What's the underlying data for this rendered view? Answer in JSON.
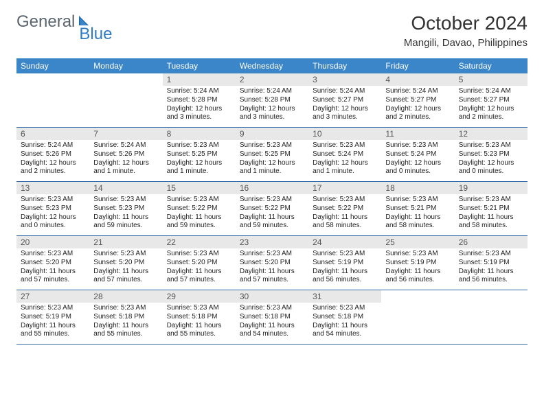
{
  "brand": {
    "general": "General",
    "blue": "Blue"
  },
  "title": "October 2024",
  "location": "Mangili, Davao, Philippines",
  "colors": {
    "header_bg": "#3a86c8",
    "daynum_bg": "#e8e8e8",
    "week_border": "#2f68a5",
    "logo_gray": "#5a6570",
    "logo_blue": "#2f7bc5"
  },
  "weekdays": [
    "Sunday",
    "Monday",
    "Tuesday",
    "Wednesday",
    "Thursday",
    "Friday",
    "Saturday"
  ],
  "weeks": [
    [
      {
        "n": "",
        "sunrise": "",
        "sunset": "",
        "daylight": ""
      },
      {
        "n": "",
        "sunrise": "",
        "sunset": "",
        "daylight": ""
      },
      {
        "n": "1",
        "sunrise": "Sunrise: 5:24 AM",
        "sunset": "Sunset: 5:28 PM",
        "daylight": "Daylight: 12 hours and 3 minutes."
      },
      {
        "n": "2",
        "sunrise": "Sunrise: 5:24 AM",
        "sunset": "Sunset: 5:28 PM",
        "daylight": "Daylight: 12 hours and 3 minutes."
      },
      {
        "n": "3",
        "sunrise": "Sunrise: 5:24 AM",
        "sunset": "Sunset: 5:27 PM",
        "daylight": "Daylight: 12 hours and 3 minutes."
      },
      {
        "n": "4",
        "sunrise": "Sunrise: 5:24 AM",
        "sunset": "Sunset: 5:27 PM",
        "daylight": "Daylight: 12 hours and 2 minutes."
      },
      {
        "n": "5",
        "sunrise": "Sunrise: 5:24 AM",
        "sunset": "Sunset: 5:27 PM",
        "daylight": "Daylight: 12 hours and 2 minutes."
      }
    ],
    [
      {
        "n": "6",
        "sunrise": "Sunrise: 5:24 AM",
        "sunset": "Sunset: 5:26 PM",
        "daylight": "Daylight: 12 hours and 2 minutes."
      },
      {
        "n": "7",
        "sunrise": "Sunrise: 5:24 AM",
        "sunset": "Sunset: 5:26 PM",
        "daylight": "Daylight: 12 hours and 1 minute."
      },
      {
        "n": "8",
        "sunrise": "Sunrise: 5:23 AM",
        "sunset": "Sunset: 5:25 PM",
        "daylight": "Daylight: 12 hours and 1 minute."
      },
      {
        "n": "9",
        "sunrise": "Sunrise: 5:23 AM",
        "sunset": "Sunset: 5:25 PM",
        "daylight": "Daylight: 12 hours and 1 minute."
      },
      {
        "n": "10",
        "sunrise": "Sunrise: 5:23 AM",
        "sunset": "Sunset: 5:24 PM",
        "daylight": "Daylight: 12 hours and 1 minute."
      },
      {
        "n": "11",
        "sunrise": "Sunrise: 5:23 AM",
        "sunset": "Sunset: 5:24 PM",
        "daylight": "Daylight: 12 hours and 0 minutes."
      },
      {
        "n": "12",
        "sunrise": "Sunrise: 5:23 AM",
        "sunset": "Sunset: 5:23 PM",
        "daylight": "Daylight: 12 hours and 0 minutes."
      }
    ],
    [
      {
        "n": "13",
        "sunrise": "Sunrise: 5:23 AM",
        "sunset": "Sunset: 5:23 PM",
        "daylight": "Daylight: 12 hours and 0 minutes."
      },
      {
        "n": "14",
        "sunrise": "Sunrise: 5:23 AM",
        "sunset": "Sunset: 5:23 PM",
        "daylight": "Daylight: 11 hours and 59 minutes."
      },
      {
        "n": "15",
        "sunrise": "Sunrise: 5:23 AM",
        "sunset": "Sunset: 5:22 PM",
        "daylight": "Daylight: 11 hours and 59 minutes."
      },
      {
        "n": "16",
        "sunrise": "Sunrise: 5:23 AM",
        "sunset": "Sunset: 5:22 PM",
        "daylight": "Daylight: 11 hours and 59 minutes."
      },
      {
        "n": "17",
        "sunrise": "Sunrise: 5:23 AM",
        "sunset": "Sunset: 5:22 PM",
        "daylight": "Daylight: 11 hours and 58 minutes."
      },
      {
        "n": "18",
        "sunrise": "Sunrise: 5:23 AM",
        "sunset": "Sunset: 5:21 PM",
        "daylight": "Daylight: 11 hours and 58 minutes."
      },
      {
        "n": "19",
        "sunrise": "Sunrise: 5:23 AM",
        "sunset": "Sunset: 5:21 PM",
        "daylight": "Daylight: 11 hours and 58 minutes."
      }
    ],
    [
      {
        "n": "20",
        "sunrise": "Sunrise: 5:23 AM",
        "sunset": "Sunset: 5:20 PM",
        "daylight": "Daylight: 11 hours and 57 minutes."
      },
      {
        "n": "21",
        "sunrise": "Sunrise: 5:23 AM",
        "sunset": "Sunset: 5:20 PM",
        "daylight": "Daylight: 11 hours and 57 minutes."
      },
      {
        "n": "22",
        "sunrise": "Sunrise: 5:23 AM",
        "sunset": "Sunset: 5:20 PM",
        "daylight": "Daylight: 11 hours and 57 minutes."
      },
      {
        "n": "23",
        "sunrise": "Sunrise: 5:23 AM",
        "sunset": "Sunset: 5:20 PM",
        "daylight": "Daylight: 11 hours and 57 minutes."
      },
      {
        "n": "24",
        "sunrise": "Sunrise: 5:23 AM",
        "sunset": "Sunset: 5:19 PM",
        "daylight": "Daylight: 11 hours and 56 minutes."
      },
      {
        "n": "25",
        "sunrise": "Sunrise: 5:23 AM",
        "sunset": "Sunset: 5:19 PM",
        "daylight": "Daylight: 11 hours and 56 minutes."
      },
      {
        "n": "26",
        "sunrise": "Sunrise: 5:23 AM",
        "sunset": "Sunset: 5:19 PM",
        "daylight": "Daylight: 11 hours and 56 minutes."
      }
    ],
    [
      {
        "n": "27",
        "sunrise": "Sunrise: 5:23 AM",
        "sunset": "Sunset: 5:19 PM",
        "daylight": "Daylight: 11 hours and 55 minutes."
      },
      {
        "n": "28",
        "sunrise": "Sunrise: 5:23 AM",
        "sunset": "Sunset: 5:18 PM",
        "daylight": "Daylight: 11 hours and 55 minutes."
      },
      {
        "n": "29",
        "sunrise": "Sunrise: 5:23 AM",
        "sunset": "Sunset: 5:18 PM",
        "daylight": "Daylight: 11 hours and 55 minutes."
      },
      {
        "n": "30",
        "sunrise": "Sunrise: 5:23 AM",
        "sunset": "Sunset: 5:18 PM",
        "daylight": "Daylight: 11 hours and 54 minutes."
      },
      {
        "n": "31",
        "sunrise": "Sunrise: 5:23 AM",
        "sunset": "Sunset: 5:18 PM",
        "daylight": "Daylight: 11 hours and 54 minutes."
      },
      {
        "n": "",
        "sunrise": "",
        "sunset": "",
        "daylight": ""
      },
      {
        "n": "",
        "sunrise": "",
        "sunset": "",
        "daylight": ""
      }
    ]
  ]
}
